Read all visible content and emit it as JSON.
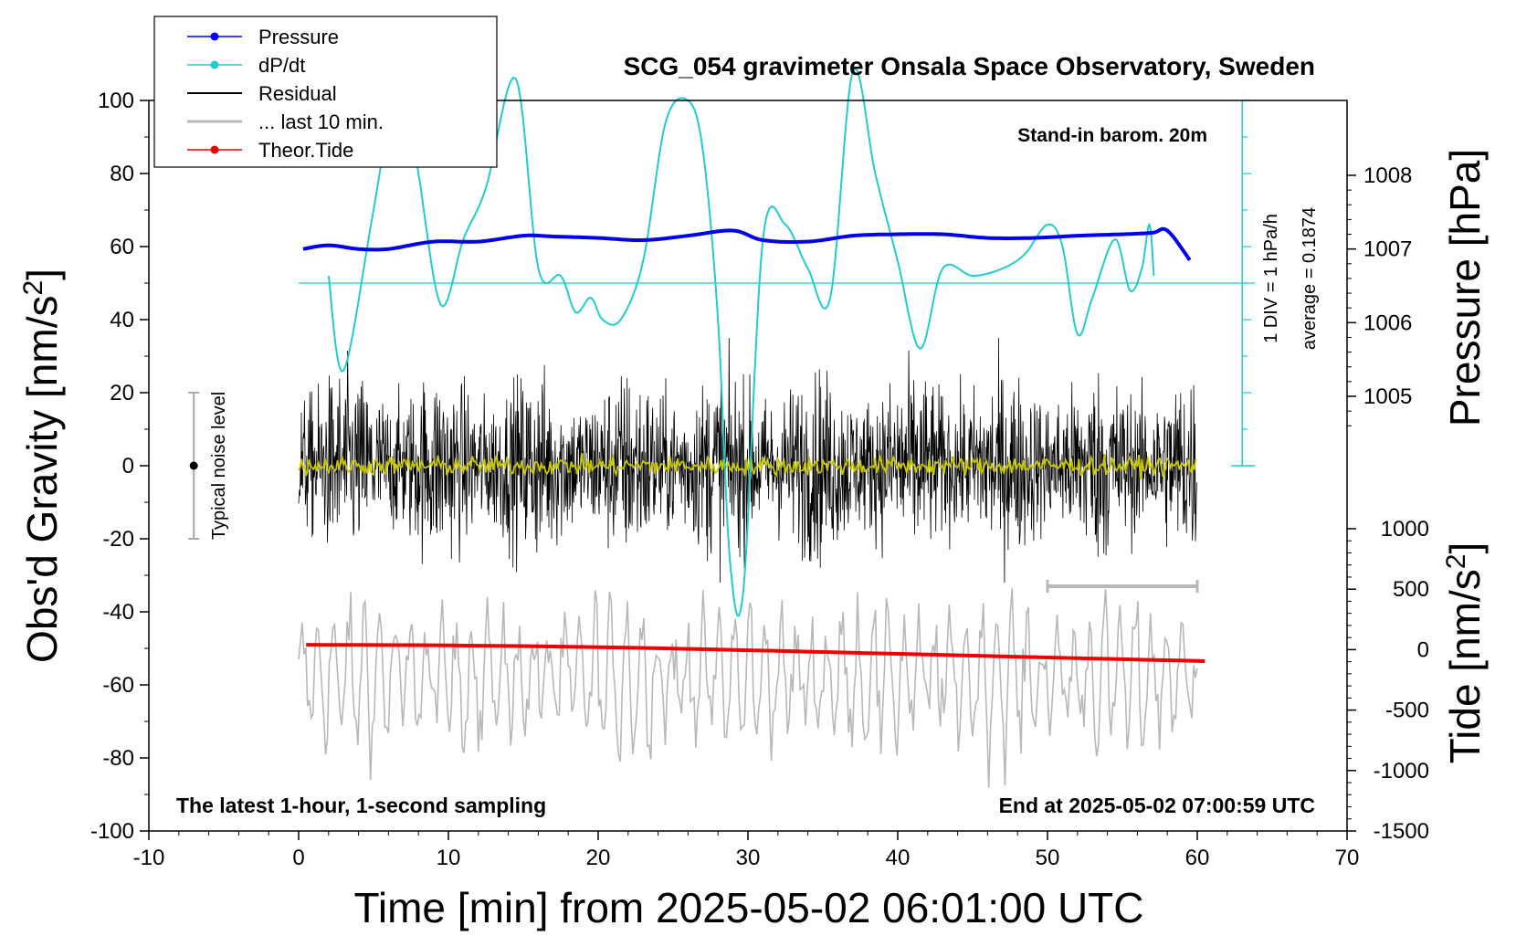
{
  "chart_data": {
    "type": "line",
    "title": "SCG_054 gravimeter Onsala Space Observatory, Sweden",
    "annotations": {
      "stand_in": "Stand-in barom. 20m",
      "bottom_left": "The latest 1-hour, 1-second sampling",
      "bottom_right": "End at 2025-05-02 07:00:59 UTC",
      "noise": "Typical noise level",
      "div_label": "1 DIV = 1 hPa/h",
      "average_label": "average = 0.1874"
    },
    "xlabel": "Time [min] from 2025-05-02 06:01:00 UTC",
    "ylabel_left_main": "Obs'd Gravity [nm/s",
    "ylabel_left_sup": "2",
    "ylabel_left_end": "]",
    "ylabel_right_top": "Pressure [hPa]",
    "ylabel_right_bottom_main": "Tide [nm/s",
    "ylabel_right_bottom_sup": "2",
    "ylabel_right_bottom_end": "]",
    "xlim": [
      -10,
      70
    ],
    "ylim": [
      -100,
      100
    ],
    "pressure_lim": [
      1004.3,
      1008.3
    ],
    "tide_lim": [
      -1500,
      1000
    ],
    "x_ticks": [
      "-10",
      "0",
      "10",
      "20",
      "30",
      "40",
      "50",
      "60",
      "70"
    ],
    "y_ticks": [
      "100",
      "80",
      "60",
      "40",
      "20",
      "0",
      "-20",
      "-40",
      "-60",
      "-80",
      "-100"
    ],
    "pressure_ticks": [
      "1008",
      "1007",
      "1006",
      "1005"
    ],
    "tide_ticks": [
      "1000",
      "500",
      "0",
      "-500",
      "-1000",
      "-1500"
    ],
    "legend": [
      "Pressure",
      "dP/dt",
      "Residual",
      "... last 10 min.",
      "Theor.Tide"
    ],
    "colors": {
      "pressure": "#0000ee",
      "dpdt": "#22cccc",
      "residual": "#000000",
      "last10": "#b8b8b8",
      "tide": "#ee0000",
      "smooth": "#c8c800",
      "noise": "#aaaaaa"
    },
    "series": [
      {
        "name": "Pressure",
        "axis": "pressure",
        "x": [
          0.3,
          2,
          4,
          6,
          9,
          12,
          15,
          17,
          20,
          23,
          26,
          29,
          31,
          34,
          37,
          40,
          43,
          46,
          49,
          52,
          55,
          57,
          58,
          59.5
        ],
        "values": [
          1007.0,
          1007.05,
          1007.0,
          1007.0,
          1007.1,
          1007.1,
          1007.18,
          1007.17,
          1007.15,
          1007.12,
          1007.18,
          1007.25,
          1007.12,
          1007.1,
          1007.18,
          1007.2,
          1007.2,
          1007.15,
          1007.15,
          1007.18,
          1007.2,
          1007.22,
          1007.25,
          1006.85
        ]
      },
      {
        "name": "dP/dt",
        "axis": "dpdt_div",
        "average": 0.1874,
        "x": [
          2,
          3,
          5,
          6.8,
          8,
          9.5,
          11,
          12.5,
          14.5,
          16,
          17.5,
          18.5,
          19.5,
          20.3,
          21.5,
          23,
          24.5,
          26,
          27,
          28,
          28.8,
          29.7,
          31,
          32.5,
          34,
          35.5,
          37,
          38.5,
          40,
          41.5,
          43,
          45,
          47,
          48.5,
          50,
          51,
          52,
          53,
          54.5,
          55.5,
          56.3,
          56.8,
          57.1
        ],
        "values": [
          0.1,
          -1.2,
          1.0,
          3.0,
          1.5,
          -0.3,
          0.6,
          1.3,
          2.8,
          0.2,
          0.1,
          -0.4,
          -0.2,
          -0.5,
          -0.5,
          0.3,
          2.2,
          2.5,
          1.8,
          -0.5,
          -3.8,
          -4.2,
          0.6,
          0.8,
          0.2,
          -0.2,
          2.9,
          1.5,
          0.3,
          -0.9,
          0.2,
          0.1,
          0.2,
          0.4,
          0.8,
          0.5,
          -0.7,
          -0.2,
          0.6,
          -0.1,
          0.2,
          0.8,
          0.1
        ]
      },
      {
        "name": "Theor.Tide",
        "axis": "tide",
        "x": [
          0.5,
          10,
          20,
          30,
          40,
          50,
          60.5
        ],
        "values": [
          40,
          35,
          20,
          -5,
          -35,
          -65,
          -95
        ]
      }
    ],
    "noise_bar": {
      "x": -7,
      "low": -20,
      "high": 20,
      "center": 0
    },
    "last10_marker": [
      50,
      60
    ]
  }
}
